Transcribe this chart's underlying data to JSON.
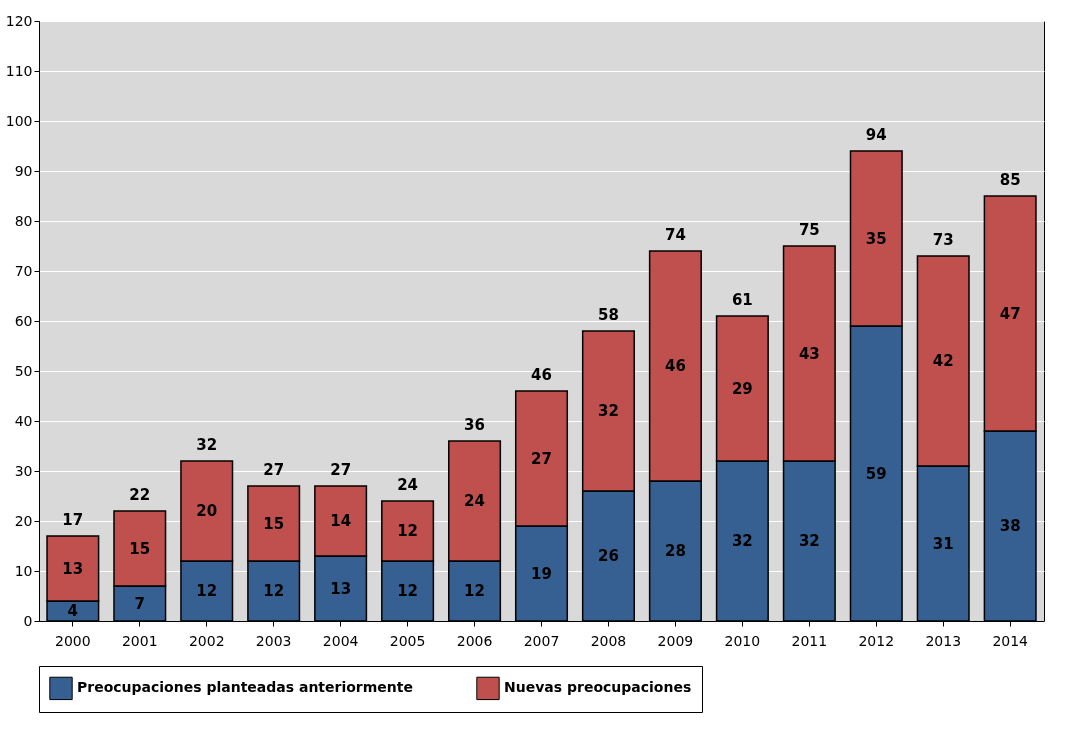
{
  "chart_data": {
    "type": "bar",
    "stacked": true,
    "categories": [
      "2000",
      "2001",
      "2002",
      "2003",
      "2004",
      "2005",
      "2006",
      "2007",
      "2008",
      "2009",
      "2010",
      "2011",
      "2012",
      "2013",
      "2014"
    ],
    "series": [
      {
        "name": "Preocupaciones planteadas anteriormente",
        "color": "#376092",
        "values": [
          4,
          7,
          12,
          12,
          13,
          12,
          12,
          19,
          26,
          28,
          32,
          32,
          59,
          31,
          38
        ]
      },
      {
        "name": "Nuevas preocupaciones",
        "color": "#c0504d",
        "values": [
          13,
          15,
          20,
          15,
          14,
          12,
          24,
          27,
          32,
          46,
          29,
          43,
          35,
          42,
          47
        ]
      }
    ],
    "totals": [
      "17",
      "22",
      "32",
      "27",
      "27",
      "24",
      "36",
      "46",
      "58",
      "74",
      "61",
      "75",
      "94",
      "73",
      "85"
    ],
    "data_labels": true,
    "ylim": [
      0,
      120
    ],
    "yticks": [
      0,
      10,
      20,
      30,
      40,
      50,
      60,
      70,
      80,
      90,
      100,
      110,
      120
    ],
    "grid": "y",
    "legend": "bottom"
  }
}
